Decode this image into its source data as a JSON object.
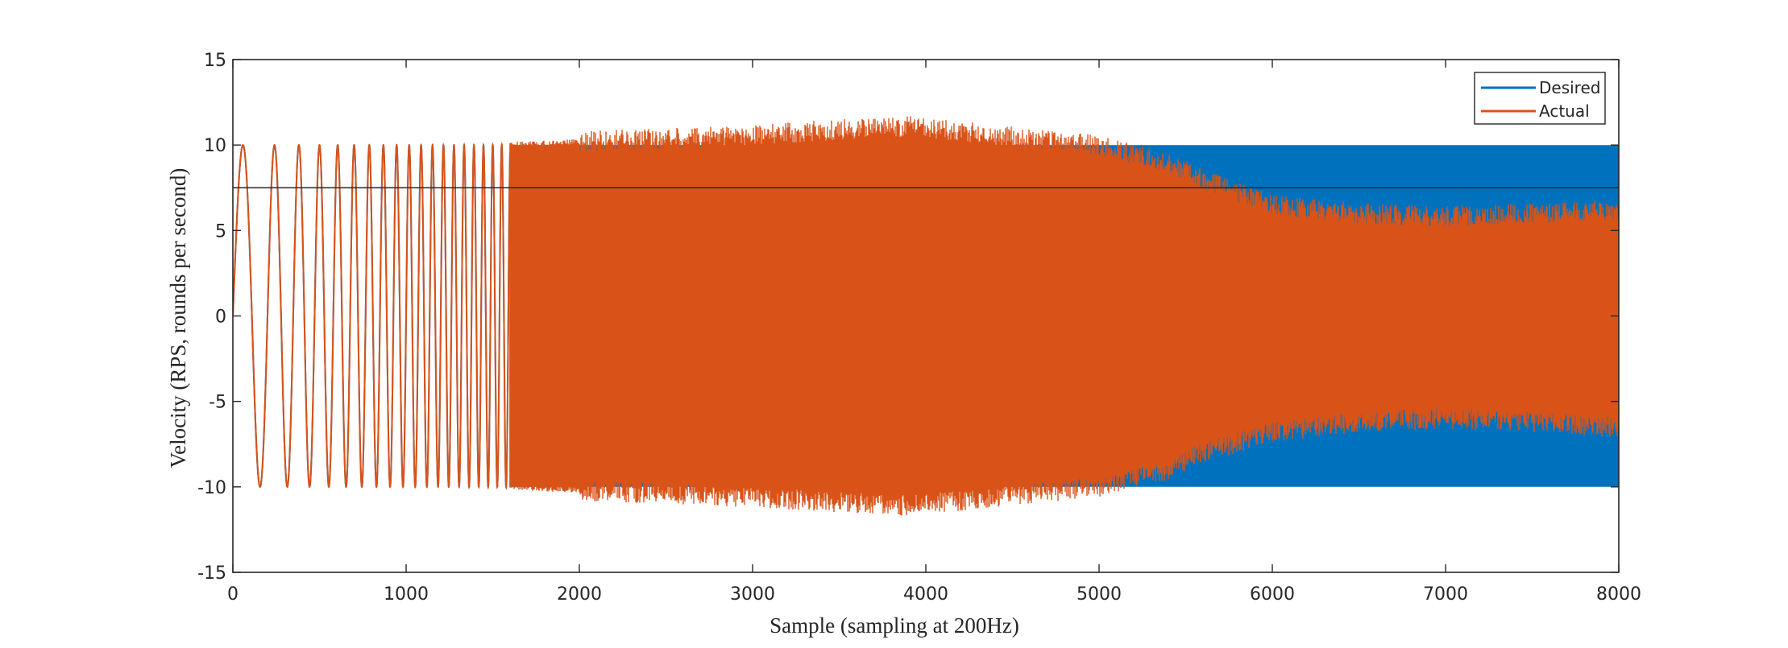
{
  "chart_data": {
    "type": "line",
    "title": "",
    "xlabel": "Sample (sampling at 200Hz)",
    "ylabel": "Velocity (RPS, rounds per second)",
    "xlim": [
      0,
      8000
    ],
    "ylim": [
      -15,
      15
    ],
    "xticks": [
      0,
      1000,
      2000,
      3000,
      4000,
      5000,
      6000,
      7000,
      8000
    ],
    "yticks": [
      -15,
      -10,
      -5,
      0,
      5,
      10,
      15
    ],
    "grid": false,
    "legend_position": "top-right",
    "reference_line": {
      "y": 7.5,
      "color": "#262626"
    },
    "series": [
      {
        "name": "Desired",
        "color": "#0072BD",
        "description": "chirp sine sweep, amplitude 10, frequency increasing with sample",
        "amplitude": 10,
        "envelope_x": [
          0,
          8000
        ],
        "envelope_upper": [
          10,
          10
        ],
        "envelope_lower": [
          -10,
          -10
        ]
      },
      {
        "name": "Actual",
        "color": "#D95319",
        "description": "measured velocity following the chirp; overshoots mid-range and attenuates at high frequency",
        "envelope_x": [
          0,
          1000,
          1500,
          2000,
          2500,
          3000,
          3500,
          3900,
          4200,
          4500,
          4800,
          5000,
          5200,
          5400,
          5600,
          6000,
          6500,
          7000,
          7500,
          8000
        ],
        "envelope_upper": [
          10,
          10,
          10,
          10.2,
          10.4,
          10.6,
          10.9,
          11.1,
          10.8,
          10.5,
          10.2,
          10.0,
          9.5,
          9.0,
          8.0,
          6.5,
          6.0,
          5.8,
          6.0,
          6.2
        ],
        "envelope_lower": [
          -10,
          -10,
          -10,
          -10.2,
          -10.4,
          -10.6,
          -10.9,
          -11.1,
          -10.8,
          -10.5,
          -10.2,
          -10.0,
          -9.5,
          -9.0,
          -8.0,
          -6.8,
          -6.2,
          -6.0,
          -6.2,
          -6.5
        ]
      }
    ]
  }
}
